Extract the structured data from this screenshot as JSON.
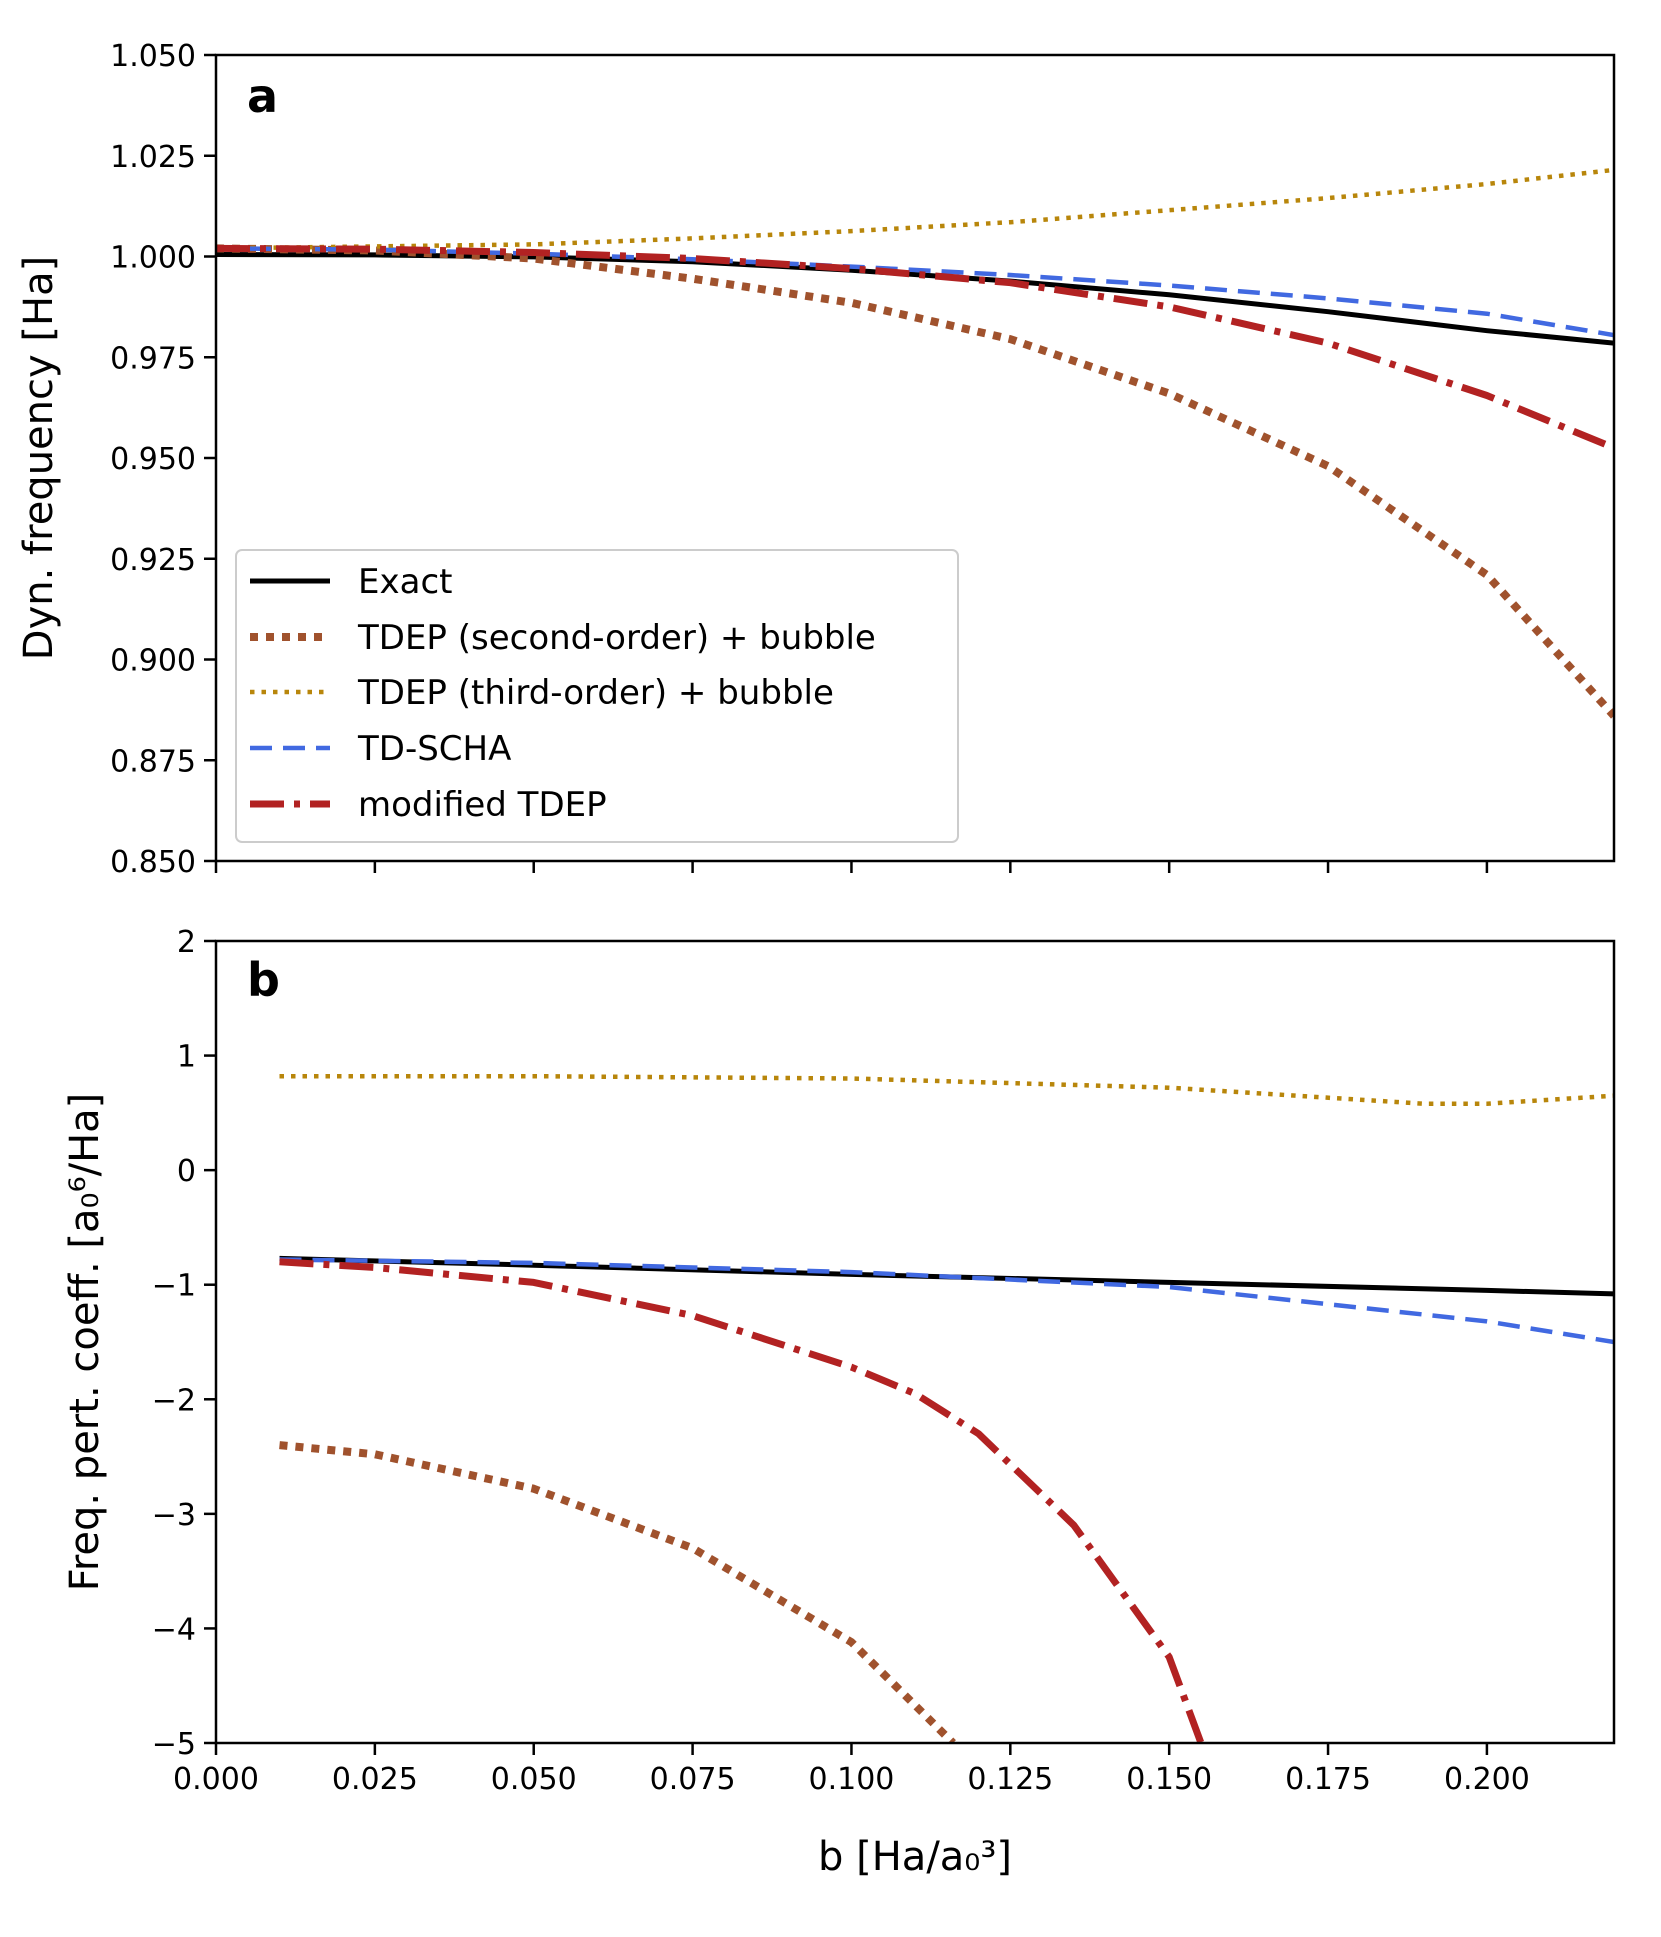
{
  "chart_data": [
    {
      "type": "line",
      "panel_label": "a",
      "title": "",
      "xlabel": "",
      "ylabel": "Dyn. frequency [Ha]",
      "xlim": [
        0.0,
        0.22
      ],
      "ylim": [
        0.85,
        1.05
      ],
      "grid": false,
      "x_ticks": [
        "0.000",
        "0.025",
        "0.050",
        "0.075",
        "0.100",
        "0.125",
        "0.150",
        "0.175",
        "0.200"
      ],
      "x_tick_values": [
        0.0,
        0.025,
        0.05,
        0.075,
        0.1,
        0.125,
        0.15,
        0.175,
        0.2
      ],
      "y_ticks": [
        "0.850",
        "0.875",
        "0.900",
        "0.925",
        "0.950",
        "0.975",
        "1.000",
        "1.025",
        "1.050"
      ],
      "y_tick_values": [
        0.85,
        0.875,
        0.9,
        0.925,
        0.95,
        0.975,
        1.0,
        1.025,
        1.05
      ],
      "legend": {
        "placement": "lower-left",
        "entries": [
          {
            "label": "Exact",
            "series": "exact"
          },
          {
            "label": "TDEP (second-order) + bubble",
            "series": "tdep2"
          },
          {
            "label": "TDEP (third-order) + bubble",
            "series": "tdep3"
          },
          {
            "label": "TD-SCHA",
            "series": "tdscha"
          },
          {
            "label": "modified TDEP",
            "series": "mtdep"
          }
        ]
      },
      "series": [
        {
          "id": "exact",
          "name": "Exact",
          "color": "#000000",
          "style": "solid",
          "x": [
            0.0,
            0.025,
            0.05,
            0.075,
            0.1,
            0.125,
            0.15,
            0.175,
            0.2,
            0.22
          ],
          "y": [
            1.0005,
            1.0004,
            0.9999,
            0.9987,
            0.9966,
            0.9939,
            0.9905,
            0.9863,
            0.9816,
            0.9785
          ]
        },
        {
          "id": "tdep2",
          "name": "TDEP (second-order) + bubble",
          "color": "#a0522d",
          "style": "dotted-thick",
          "x": [
            0.0,
            0.025,
            0.05,
            0.075,
            0.1,
            0.125,
            0.15,
            0.175,
            0.2,
            0.22
          ],
          "y": [
            1.002,
            1.0015,
            0.9995,
            0.9945,
            0.9885,
            0.9795,
            0.966,
            0.948,
            0.921,
            0.886
          ]
        },
        {
          "id": "tdep3",
          "name": "TDEP (third-order) + bubble",
          "color": "#b8860b",
          "style": "dotted",
          "x": [
            0.0,
            0.025,
            0.05,
            0.075,
            0.1,
            0.125,
            0.15,
            0.175,
            0.2,
            0.22
          ],
          "y": [
            1.002,
            1.0025,
            1.003,
            1.0045,
            1.0063,
            1.0085,
            1.0115,
            1.0145,
            1.018,
            1.0215
          ]
        },
        {
          "id": "tdscha",
          "name": "TD-SCHA",
          "color": "#4169e1",
          "style": "dashed",
          "x": [
            0.0,
            0.025,
            0.05,
            0.075,
            0.1,
            0.125,
            0.15,
            0.175,
            0.2,
            0.22
          ],
          "y": [
            1.002,
            1.0017,
            1.0007,
            0.9993,
            0.9975,
            0.9954,
            0.9928,
            0.9896,
            0.9858,
            0.9805
          ]
        },
        {
          "id": "mtdep",
          "name": "modified TDEP",
          "color": "#b22222",
          "style": "dashdot",
          "x": [
            0.0,
            0.025,
            0.05,
            0.075,
            0.1,
            0.125,
            0.15,
            0.175,
            0.2,
            0.22
          ],
          "y": [
            1.002,
            1.0018,
            1.001,
            0.9995,
            0.997,
            0.9935,
            0.9875,
            0.9785,
            0.9655,
            0.9525
          ]
        }
      ]
    },
    {
      "type": "line",
      "panel_label": "b",
      "title": "",
      "xlabel": "b [Ha/a₀³]",
      "ylabel": "Freq. pert. coeff. [a₀⁶/Ha]",
      "xlim": [
        0.0,
        0.22
      ],
      "ylim": [
        -5,
        2
      ],
      "grid": false,
      "x_ticks": [
        "0.000",
        "0.025",
        "0.050",
        "0.075",
        "0.100",
        "0.125",
        "0.150",
        "0.175",
        "0.200"
      ],
      "x_tick_values": [
        0.0,
        0.025,
        0.05,
        0.075,
        0.1,
        0.125,
        0.15,
        0.175,
        0.2
      ],
      "y_ticks": [
        "−5",
        "−4",
        "−3",
        "−2",
        "−1",
        "0",
        "1",
        "2"
      ],
      "y_tick_values": [
        -5,
        -4,
        -3,
        -2,
        -1,
        0,
        1,
        2
      ],
      "series": [
        {
          "id": "exact",
          "name": "Exact",
          "color": "#000000",
          "style": "solid",
          "x": [
            0.01,
            0.05,
            0.1,
            0.15,
            0.2,
            0.22
          ],
          "y": [
            -0.77,
            -0.83,
            -0.91,
            -0.98,
            -1.05,
            -1.08
          ]
        },
        {
          "id": "tdep2",
          "name": "TDEP (second-order) + bubble",
          "color": "#a0522d",
          "style": "dotted-thick",
          "x": [
            0.01,
            0.025,
            0.05,
            0.075,
            0.1,
            0.116
          ],
          "y": [
            -2.4,
            -2.48,
            -2.78,
            -3.3,
            -4.12,
            -5.0
          ]
        },
        {
          "id": "tdep3",
          "name": "TDEP (third-order) + bubble",
          "color": "#b8860b",
          "style": "dotted",
          "x": [
            0.01,
            0.05,
            0.1,
            0.15,
            0.19,
            0.2,
            0.22
          ],
          "y": [
            0.82,
            0.82,
            0.8,
            0.72,
            0.58,
            0.58,
            0.65
          ]
        },
        {
          "id": "tdscha",
          "name": "TD-SCHA",
          "color": "#4169e1",
          "style": "dashed",
          "x": [
            0.01,
            0.05,
            0.1,
            0.15,
            0.2,
            0.22
          ],
          "y": [
            -0.78,
            -0.81,
            -0.89,
            -1.02,
            -1.32,
            -1.5
          ]
        },
        {
          "id": "mtdep",
          "name": "modified TDEP",
          "color": "#b22222",
          "style": "dashdot",
          "x": [
            0.01,
            0.025,
            0.05,
            0.075,
            0.1,
            0.11,
            0.12,
            0.135,
            0.15,
            0.155
          ],
          "y": [
            -0.8,
            -0.85,
            -0.98,
            -1.27,
            -1.72,
            -1.95,
            -2.3,
            -3.1,
            -4.25,
            -5.0
          ]
        }
      ]
    }
  ]
}
